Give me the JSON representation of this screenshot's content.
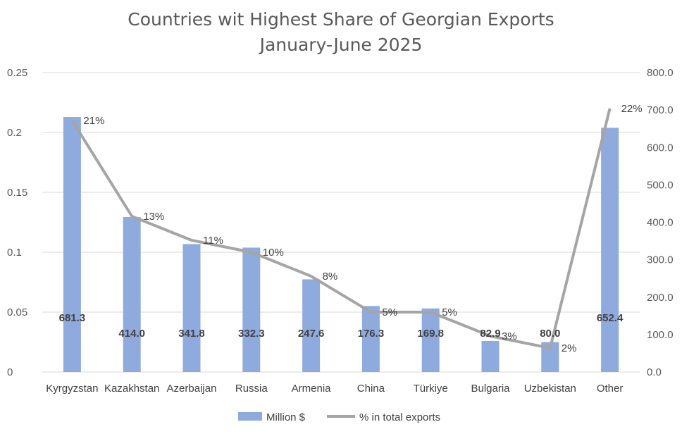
{
  "chart_data": {
    "type": "bar",
    "title_lines": [
      "Countries wit Highest Share of Georgian Exports",
      "January-June 2025"
    ],
    "categories": [
      "Kyrgyzstan",
      "Kazakhstan",
      "Azerbaijan",
      "Russia",
      "Armenia",
      "China",
      "Türkiye",
      "Bulgaria",
      "Uzbekistan",
      "Other"
    ],
    "series": [
      {
        "name": "Million $",
        "kind": "bar",
        "axis": "right",
        "color": "#8faadc",
        "values": [
          681.3,
          414.0,
          341.8,
          332.3,
          247.6,
          176.3,
          169.8,
          82.9,
          80.0,
          652.4
        ],
        "labels": [
          "681.3",
          "414.0",
          "341.8",
          "332.3",
          "247.6",
          "176.3",
          "169.8",
          "82.9",
          "80.0",
          "652.4"
        ]
      },
      {
        "name": "% in total exports",
        "kind": "line",
        "axis": "left",
        "color": "#a5a5a5",
        "values": [
          0.21,
          0.13,
          0.11,
          0.1,
          0.08,
          0.05,
          0.05,
          0.03,
          0.02,
          0.22
        ],
        "labels": [
          "21%",
          "13%",
          "11%",
          "10%",
          "8%",
          "5%",
          "5%",
          "3%",
          "2%",
          "22%"
        ]
      }
    ],
    "y_left": {
      "min": 0,
      "max": 0.25,
      "ticks": [
        "0",
        "0.05",
        "0.1",
        "0.15",
        "0.2",
        "0.25"
      ]
    },
    "y_right": {
      "min": 0,
      "max": 800,
      "ticks": [
        "0.0",
        "100.0",
        "200.0",
        "300.0",
        "400.0",
        "500.0",
        "600.0",
        "700.0",
        "800.0"
      ]
    },
    "grid": true,
    "legend_position": "bottom"
  }
}
